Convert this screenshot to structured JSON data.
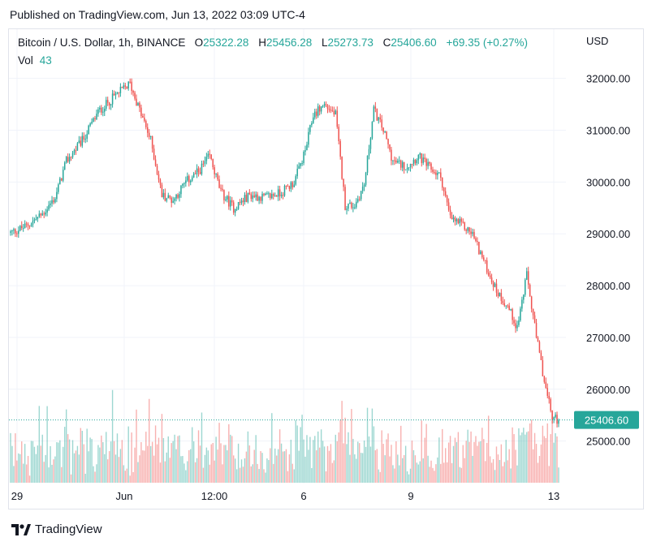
{
  "header": {
    "published": "Published on TradingView.com, Jun 13, 2022 03:09 UTC-4"
  },
  "legend": {
    "symbol": "Bitcoin / U.S. Dollar, 1h, BINANCE",
    "o_label": "O",
    "o_value": "25322.28",
    "h_label": "H",
    "h_value": "25456.28",
    "l_label": "L",
    "l_value": "25273.73",
    "c_label": "C",
    "c_value": "25406.60",
    "change": "+69.35 (+0.27%)",
    "vol_label": "Vol",
    "vol_value": "43"
  },
  "footer": {
    "brand": "TradingView"
  },
  "colors": {
    "up": "#26a69a",
    "down": "#ef5350",
    "grid": "#f0f3fa",
    "last_price_bg": "#26a69a"
  },
  "chart_data": {
    "type": "candlestick",
    "currency": "USD",
    "y_ticks": [
      "32000.00",
      "31000.00",
      "30000.00",
      "29000.00",
      "28000.00",
      "27000.00",
      "26000.00",
      "25000.00"
    ],
    "ylim": [
      24180,
      32950
    ],
    "x_ticks": [
      "29",
      "Jun",
      "12:00",
      "6",
      "9",
      "13"
    ],
    "last_price": "25406.60",
    "close_anchors": [
      [
        0,
        29020
      ],
      [
        10,
        29150
      ],
      [
        20,
        29380
      ],
      [
        28,
        29700
      ],
      [
        35,
        30400
      ],
      [
        45,
        30800
      ],
      [
        55,
        31350
      ],
      [
        65,
        31650
      ],
      [
        75,
        31900
      ],
      [
        82,
        31300
      ],
      [
        88,
        30800
      ],
      [
        95,
        29750
      ],
      [
        102,
        29650
      ],
      [
        110,
        30000
      ],
      [
        118,
        30200
      ],
      [
        125,
        30500
      ],
      [
        132,
        29800
      ],
      [
        140,
        29500
      ],
      [
        150,
        29750
      ],
      [
        160,
        29700
      ],
      [
        170,
        29800
      ],
      [
        178,
        30000
      ],
      [
        185,
        30600
      ],
      [
        190,
        31300
      ],
      [
        197,
        31500
      ],
      [
        204,
        31300
      ],
      [
        210,
        29550
      ],
      [
        216,
        29550
      ],
      [
        222,
        29950
      ],
      [
        228,
        31400
      ],
      [
        234,
        31000
      ],
      [
        240,
        30400
      ],
      [
        248,
        30300
      ],
      [
        256,
        30500
      ],
      [
        262,
        30300
      ],
      [
        270,
        30100
      ],
      [
        276,
        29300
      ],
      [
        282,
        29200
      ],
      [
        290,
        29000
      ],
      [
        298,
        28400
      ],
      [
        305,
        27900
      ],
      [
        312,
        27600
      ],
      [
        318,
        27200
      ],
      [
        324,
        28200
      ],
      [
        330,
        27000
      ],
      [
        336,
        26000
      ],
      [
        340,
        25450
      ],
      [
        344,
        25406.6
      ]
    ],
    "candle_count": 345
  }
}
